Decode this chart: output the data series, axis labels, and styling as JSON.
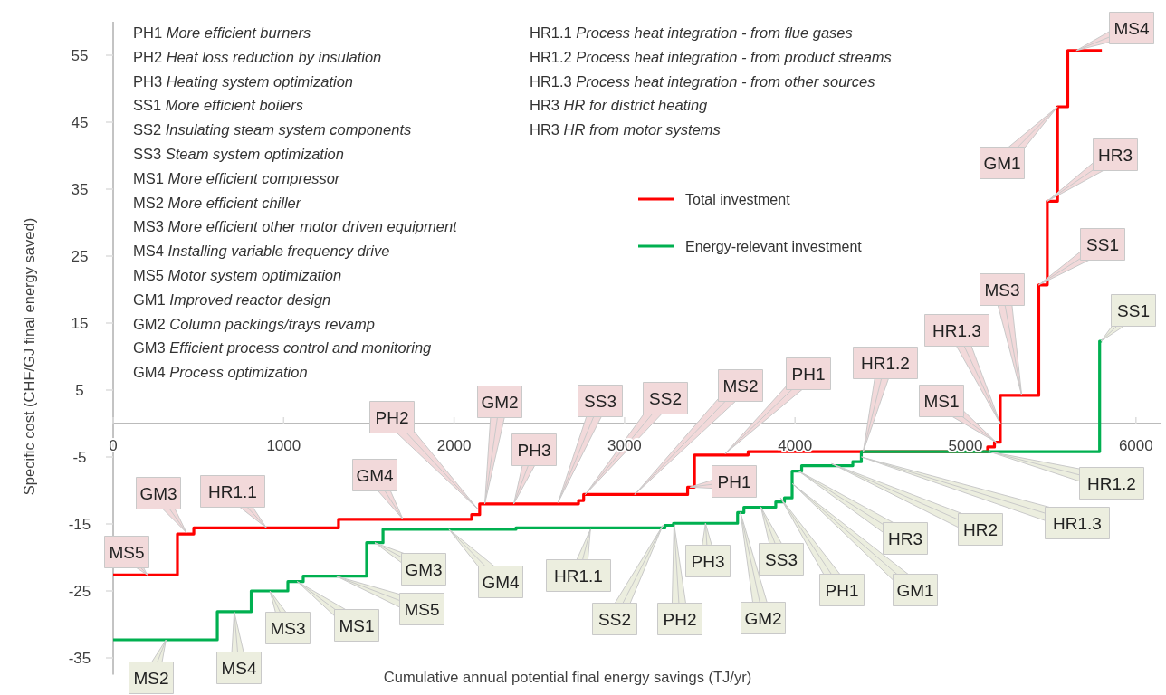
{
  "chart_data": {
    "type": "step",
    "xlabel": "Cumulative annual potential final energy savings (TJ/yr)",
    "ylabel": "Specific cost (CHF/GJ final energy saved)",
    "xlim": [
      0,
      6150
    ],
    "ylim": [
      -37.5,
      60
    ],
    "xticks": [
      0,
      1000,
      2000,
      3000,
      4000,
      5000,
      6000
    ],
    "yticks": [
      -35,
      -25,
      -15,
      -5,
      5,
      15,
      25,
      35,
      45,
      55
    ],
    "grid": false,
    "legend": "top",
    "series": [
      {
        "name": "Total investment",
        "color": "#ff0000",
        "x": [
          0,
          377,
          473,
          1322,
          2103,
          2150,
          2730,
          2760,
          3370,
          3410,
          3725,
          4390,
          5130,
          5170,
          5204,
          5430,
          5480,
          5540,
          5600,
          5800
        ],
        "values": [
          -22.6,
          -16.5,
          -15.6,
          -14.3,
          -13.6,
          -12.0,
          -11.5,
          -10.6,
          -9.5,
          -4.7,
          -4.2,
          -4.2,
          -3.5,
          -2.8,
          4.2,
          20.7,
          33.2,
          47.3,
          55.7,
          55.7
        ]
      },
      {
        "name": "Energy-relevant investment",
        "color": "#00b050",
        "x": [
          0,
          611,
          810,
          1025,
          1115,
          1487,
          1583,
          2363,
          3237,
          3287,
          3663,
          3700,
          3887,
          3938,
          3983,
          4039,
          4339,
          4389,
          5787,
          5800
        ],
        "values": [
          -32.3,
          -28.1,
          -25.0,
          -23.6,
          -22.8,
          -17.8,
          -15.8,
          -15.6,
          -15.2,
          -14.9,
          -13.3,
          -12.5,
          -11.7,
          -11.1,
          -7.1,
          -6.3,
          -5.7,
          -4.2,
          12.3,
          12.3
        ]
      }
    ],
    "annotations": [
      "PH1 More efficient burners",
      "PH2 Heat loss reduction by insulation",
      "PH3 Heating system optimization",
      "SS1 More efficient boilers",
      "SS2 Insulating steam system components",
      "SS3 Steam system optimization",
      "MS1 More efficient compressor",
      "MS2 More efficient chiller",
      "MS3 More efficient other motor driven equipment",
      "MS4 Installing variable frequency drive",
      "MS5 Motor system optimization",
      "GM1 Improved reactor design",
      "GM2 Column packings/trays revamp",
      "GM3 Efficient process control and monitoring",
      "GM4 Process optimization",
      "HR1.1 Process heat integration - from flue gases",
      "HR1.2 Process heat integration - from product streams",
      "HR1.3 Process heat integration - from other sources",
      "HR3 HR for district heating",
      "HR3 HR from motor systems",
      {
        "text": "MS5",
        "x": 200,
        "y": -22.6
      },
      {
        "text": "GM3",
        "x": 430,
        "y": -16.3
      },
      {
        "text": "HR1.1",
        "x": 900,
        "y": -15.6
      },
      {
        "text": "GM4",
        "x": 1700,
        "y": -14.3
      },
      {
        "text": "PH2",
        "x": 2140,
        "y": -12.8
      },
      {
        "text": "GM2",
        "x": 2180,
        "y": -12.0
      },
      {
        "text": "PH3",
        "x": 2350,
        "y": -12.0
      },
      {
        "text": "SS3",
        "x": 2610,
        "y": -11.8
      },
      {
        "text": "SS2",
        "x": 2770,
        "y": -10.6
      },
      {
        "text": "MS2",
        "x": 3060,
        "y": -10.6
      },
      {
        "text": "PH1",
        "x": 3590,
        "y": -4.5
      },
      {
        "text": "PH1",
        "x": 3385,
        "y": -9.5
      },
      {
        "text": "HR1.2",
        "x": 4400,
        "y": -4.2
      },
      {
        "text": "MS1",
        "x": 5180,
        "y": -2.8
      },
      {
        "text": "HR1.3",
        "x": 5204,
        "y": 0
      },
      {
        "text": "MS3",
        "x": 5330,
        "y": 4.2
      },
      {
        "text": "SS1",
        "x": 5430,
        "y": 20.7
      },
      {
        "text": "HR3",
        "x": 5480,
        "y": 33.2
      },
      {
        "text": "GM1",
        "x": 5540,
        "y": 47.3
      },
      {
        "text": "MS4",
        "x": 5650,
        "y": 55.7
      },
      {
        "text": "MS2",
        "x": 310,
        "y": -32.3
      },
      {
        "text": "MS4",
        "x": 710,
        "y": -28.1
      },
      {
        "text": "MS3",
        "x": 920,
        "y": -25.0
      },
      {
        "text": "MS1",
        "x": 1080,
        "y": -23.6
      },
      {
        "text": "MS5",
        "x": 1310,
        "y": -22.8
      },
      {
        "text": "GM3",
        "x": 1535,
        "y": -17.8
      },
      {
        "text": "GM4",
        "x": 1970,
        "y": -15.8
      },
      {
        "text": "HR1.1",
        "x": 2800,
        "y": -15.8
      },
      {
        "text": "SS2",
        "x": 3225,
        "y": -15.2
      },
      {
        "text": "PH2",
        "x": 3290,
        "y": -14.9
      },
      {
        "text": "PH3",
        "x": 3475,
        "y": -14.9
      },
      {
        "text": "SS3",
        "x": 3800,
        "y": -12.5
      },
      {
        "text": "GM2",
        "x": 3680,
        "y": -13.3
      },
      {
        "text": "PH1",
        "x": 3915,
        "y": -11.1
      },
      {
        "text": "GM1",
        "x": 3985,
        "y": -9
      },
      {
        "text": "HR3",
        "x": 4015,
        "y": -7
      },
      {
        "text": "HR2",
        "x": 4215,
        "y": -6
      },
      {
        "text": "HR1.3",
        "x": 4390,
        "y": -5.0
      },
      {
        "text": "HR1.2",
        "x": 5140,
        "y": -4.2
      },
      {
        "text": "SS1",
        "x": 5795,
        "y": 12.3
      }
    ]
  }
}
